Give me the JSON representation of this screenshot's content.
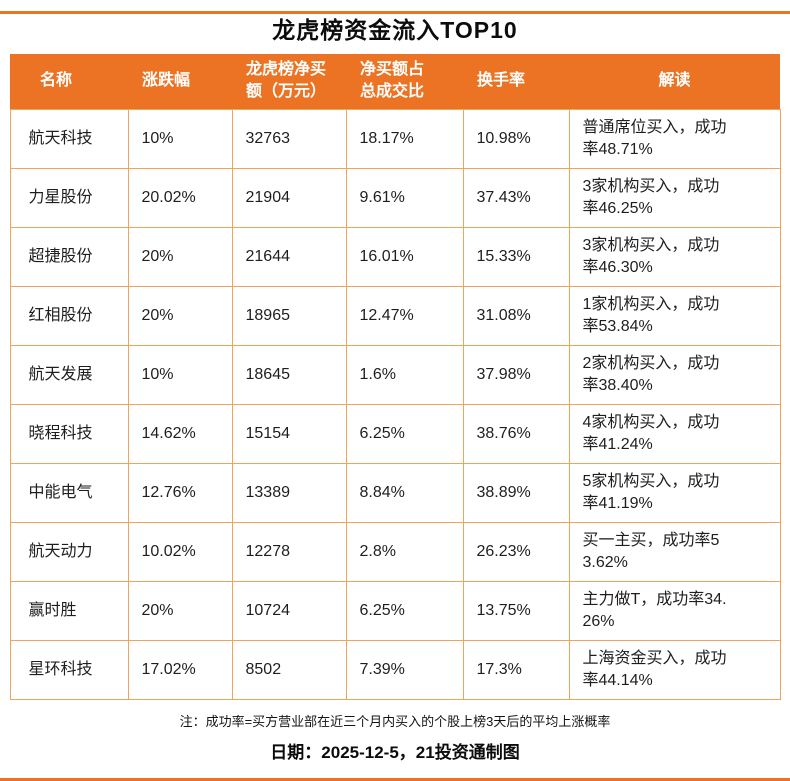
{
  "title": "龙虎榜资金流入TOP10",
  "chart_data": {
    "type": "table",
    "title": "龙虎榜资金流入TOP10",
    "columns": [
      "名称",
      "涨跌幅",
      "龙虎榜净买\n额（万元）",
      "净买额占\n总成交比",
      "换手率",
      "解读"
    ],
    "rows": [
      [
        "航天科技",
        "10%",
        "32763",
        "18.17%",
        "10.98%",
        "普通席位买入，成功率48.71%"
      ],
      [
        "力星股份",
        "20.02%",
        "21904",
        "9.61%",
        "37.43%",
        "3家机构买入，成功率46.25%"
      ],
      [
        "超捷股份",
        "20%",
        "21644",
        "16.01%",
        "15.33%",
        "3家机构买入，成功率46.30%"
      ],
      [
        "红相股份",
        "20%",
        "18965",
        "12.47%",
        "31.08%",
        "1家机构买入，成功率53.84%"
      ],
      [
        "航天发展",
        "10%",
        "18645",
        "1.6%",
        "37.98%",
        "2家机构买入，成功率38.40%"
      ],
      [
        "晓程科技",
        "14.62%",
        "15154",
        "6.25%",
        "38.76%",
        "4家机构买入，成功率41.24%"
      ],
      [
        "中能电气",
        "12.76%",
        "13389",
        "8.84%",
        "38.89%",
        "5家机构买入，成功率41.19%"
      ],
      [
        "航天动力",
        "10.02%",
        "12278",
        "2.8%",
        "26.23%",
        "买一主买，成功率53.62%"
      ],
      [
        "赢时胜",
        "20%",
        "10724",
        "6.25%",
        "13.75%",
        "主力做T，成功率34.26%"
      ],
      [
        "星环科技",
        "17.02%",
        "8502",
        "7.39%",
        "17.3%",
        "上海资金买入，成功率44.14%"
      ]
    ],
    "legend": null,
    "grid": true
  },
  "footnote": "注：成功率=买方营业部在近三个月内买入的个股上榜3天后的平均上涨概率",
  "dateline": "日期：2025-12-5，21投资通制图",
  "colors": {
    "header_bg": "#EB7323",
    "header_text": "#FFFFFF",
    "border": "#F0A35C",
    "accent": "#EB7323",
    "text": "#1E1E1E"
  }
}
